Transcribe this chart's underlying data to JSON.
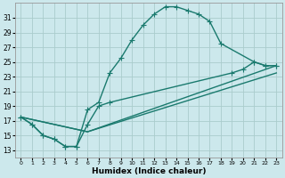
{
  "xlabel": "Humidex (Indice chaleur)",
  "bg_color": "#cce8ec",
  "grid_color": "#aacccc",
  "line_color": "#1a7a6e",
  "xlim": [
    -0.5,
    23.5
  ],
  "ylim": [
    12,
    33
  ],
  "xticks": [
    0,
    1,
    2,
    3,
    4,
    5,
    6,
    7,
    8,
    9,
    10,
    11,
    12,
    13,
    14,
    15,
    16,
    17,
    18,
    19,
    20,
    21,
    22,
    23
  ],
  "yticks": [
    13,
    15,
    17,
    19,
    21,
    23,
    25,
    27,
    29,
    31
  ],
  "curve_upper_x": [
    0,
    1,
    2,
    3,
    4,
    5,
    6,
    7,
    8,
    9,
    10,
    11,
    12,
    13,
    14,
    15,
    16,
    17,
    18,
    21,
    22,
    23
  ],
  "curve_upper_y": [
    17.5,
    16.5,
    15.0,
    14.5,
    13.5,
    13.5,
    18.5,
    19.5,
    23.5,
    25.5,
    28.0,
    30.0,
    31.5,
    32.5,
    32.5,
    32.0,
    31.5,
    30.5,
    27.5,
    25.0,
    24.5,
    24.5
  ],
  "curve_mid_x": [
    0,
    1,
    2,
    3,
    4,
    5,
    6,
    7,
    8,
    19,
    20,
    21,
    22,
    23
  ],
  "curve_mid_y": [
    17.5,
    16.5,
    15.0,
    14.5,
    13.5,
    13.5,
    16.5,
    19.0,
    19.5,
    23.5,
    24.0,
    25.0,
    24.5,
    24.5
  ],
  "line1_x": [
    0,
    6,
    23
  ],
  "line1_y": [
    17.5,
    15.5,
    24.5
  ],
  "line2_x": [
    0,
    6,
    23
  ],
  "line2_y": [
    17.5,
    15.5,
    23.5
  ]
}
